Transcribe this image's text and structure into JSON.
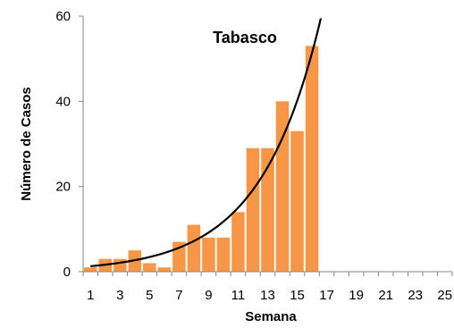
{
  "chart_data": {
    "type": "bar",
    "title": "Tabasco",
    "xlabel": "Semana",
    "ylabel": "Número de Casos",
    "x": [
      1,
      2,
      3,
      4,
      5,
      6,
      7,
      8,
      9,
      10,
      11,
      12,
      13,
      14,
      15,
      16,
      17,
      18,
      19,
      20,
      21,
      22,
      23,
      24,
      25
    ],
    "values": [
      1,
      3,
      3,
      5,
      2,
      1,
      7,
      11,
      8,
      8,
      14,
      29,
      29,
      40,
      33,
      53,
      null,
      null,
      null,
      null,
      null,
      null,
      null,
      null,
      null
    ],
    "x_tick_labels": [
      "1",
      "3",
      "5",
      "7",
      "9",
      "11",
      "13",
      "15",
      "17",
      "19",
      "21",
      "23",
      "25"
    ],
    "y_tick_labels": [
      "0",
      "20",
      "40",
      "60"
    ],
    "ylim": [
      0,
      60
    ],
    "xlim": [
      0.5,
      25.5
    ],
    "bar_color": "#F79646",
    "trendline": {
      "type": "exponential",
      "color": "#000000"
    },
    "grid": false,
    "legend": "none"
  }
}
